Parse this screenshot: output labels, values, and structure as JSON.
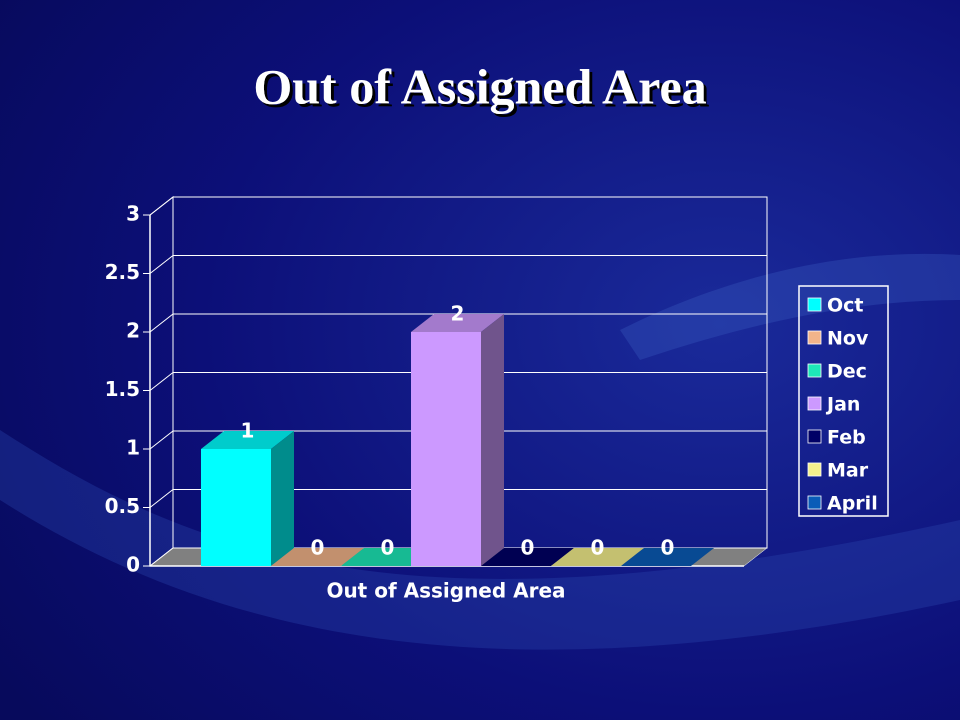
{
  "chart_data": {
    "type": "bar3d",
    "title": "Out of Assigned Area",
    "categories": [
      "Out of Assigned Area"
    ],
    "series": [
      {
        "name": "Oct",
        "color": "#00ffff",
        "values": [
          1
        ]
      },
      {
        "name": "Nov",
        "color": "#f2b48a",
        "values": [
          0
        ]
      },
      {
        "name": "Dec",
        "color": "#1de8b8",
        "values": [
          0
        ]
      },
      {
        "name": "Jan",
        "color": "#cc99ff",
        "values": [
          2
        ]
      },
      {
        "name": "Feb",
        "color": "#000066",
        "values": [
          0
        ]
      },
      {
        "name": "Mar",
        "color": "#f5f08c",
        "values": [
          0
        ]
      },
      {
        "name": "April",
        "color": "#0a5cb8",
        "values": [
          0
        ]
      }
    ],
    "ylim": [
      0,
      3
    ],
    "yticks": [
      0,
      0.5,
      1,
      1.5,
      2,
      2.5,
      3
    ],
    "grid": true,
    "legend": "right"
  }
}
